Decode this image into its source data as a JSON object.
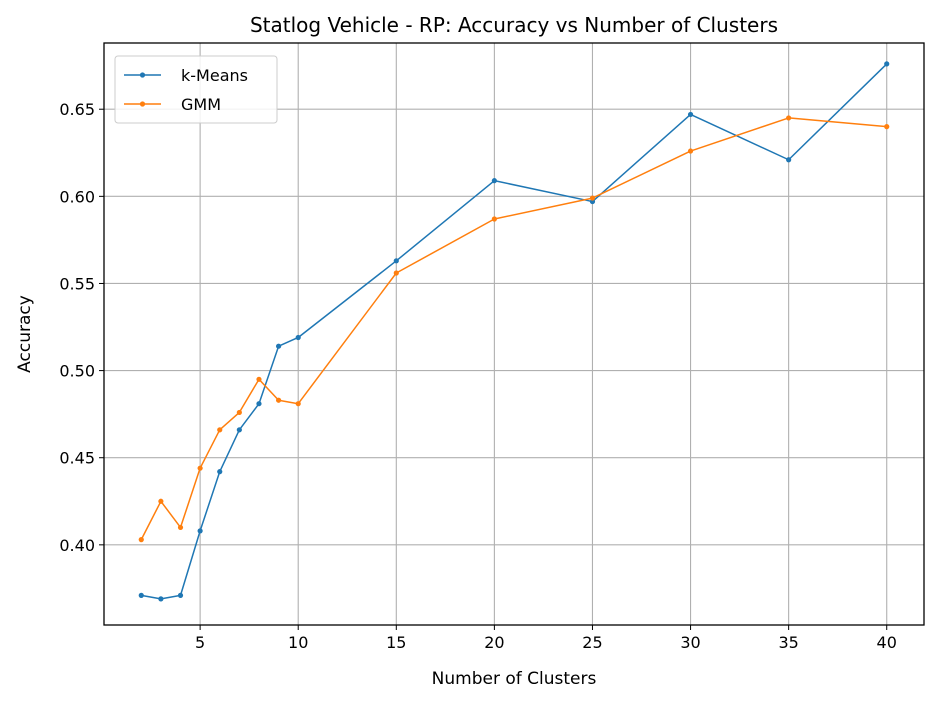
{
  "chart_data": {
    "type": "line",
    "title": "Statlog Vehicle - RP: Accuracy vs Number of Clusters",
    "xlabel": "Number of Clusters",
    "ylabel": "Accuracy",
    "xlim": [
      0.1,
      41.9
    ],
    "ylim": [
      0.354,
      0.688
    ],
    "xticks": [
      5,
      10,
      15,
      20,
      25,
      30,
      35,
      40
    ],
    "xtick_labels": [
      "5",
      "10",
      "15",
      "20",
      "25",
      "30",
      "35",
      "40"
    ],
    "yticks": [
      0.4,
      0.45,
      0.5,
      0.55,
      0.6,
      0.65
    ],
    "ytick_labels": [
      "0.40",
      "0.45",
      "0.50",
      "0.55",
      "0.60",
      "0.65"
    ],
    "grid": true,
    "legend_position": "upper-left",
    "x": [
      2,
      3,
      4,
      5,
      6,
      7,
      8,
      9,
      10,
      15,
      20,
      25,
      30,
      35,
      40
    ],
    "series": [
      {
        "name": "k-Means",
        "color": "#1f77b4",
        "values": [
          0.371,
          0.369,
          0.371,
          0.408,
          0.442,
          0.466,
          0.481,
          0.514,
          0.519,
          0.563,
          0.609,
          0.597,
          0.647,
          0.621,
          0.676
        ]
      },
      {
        "name": "GMM",
        "color": "#ff7f0e",
        "values": [
          0.403,
          0.425,
          0.41,
          0.444,
          0.466,
          0.476,
          0.495,
          0.483,
          0.481,
          0.556,
          0.587,
          0.599,
          0.626,
          0.645,
          0.64
        ]
      }
    ]
  }
}
